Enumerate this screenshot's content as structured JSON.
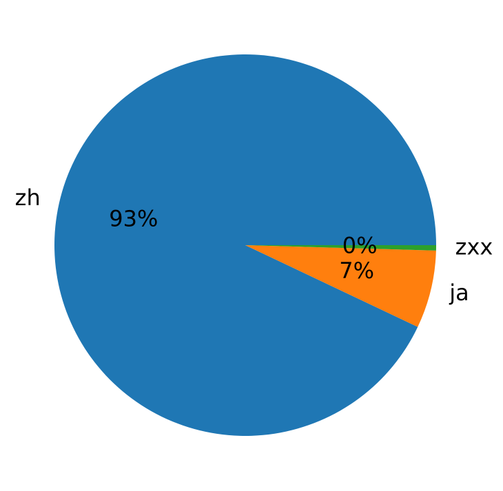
{
  "chart_data": {
    "type": "pie",
    "categories": [
      "zh",
      "ja",
      "zxx"
    ],
    "values": [
      92.95,
      6.6,
      0.45
    ],
    "value_labels": [
      "93%",
      "7%",
      "0%"
    ],
    "colors": [
      "#1f77b4",
      "#ff7f0e",
      "#2ca02c"
    ],
    "startangle": 0,
    "counterclockwise": true
  }
}
